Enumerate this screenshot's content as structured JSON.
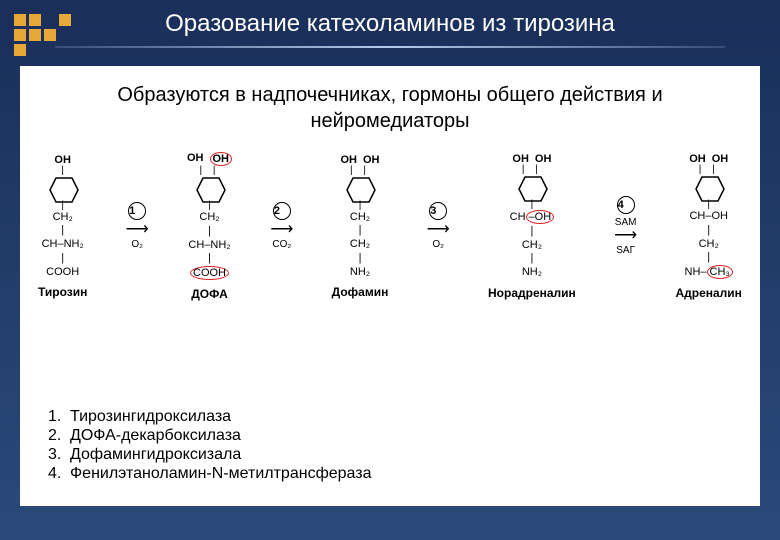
{
  "title": "Оразование катехоламинов из тирозина",
  "subtitle_l1": "Образуются в надпочечниках, гормоны общего действия и",
  "subtitle_l2": "нейромедиаторы",
  "molecules": [
    {
      "name": "Тирозин",
      "top_oh": [
        "OH"
      ],
      "has_oh_circle": false,
      "chain": [
        "CH₂",
        "|",
        "CH–NH₂",
        "|",
        "COOH"
      ],
      "circle_idx": []
    },
    {
      "name": "ДОФА",
      "top_oh": [
        "OH",
        "OH"
      ],
      "has_oh_circle": true,
      "chain": [
        "CH₂",
        "|",
        "CH–NH₂",
        "|",
        "COOH"
      ],
      "circle_idx": [
        4
      ]
    },
    {
      "name": "Дофамин",
      "top_oh": [
        "OH",
        "OH"
      ],
      "has_oh_circle": false,
      "chain": [
        "CH₂",
        "|",
        "CH₂",
        "|",
        "NH₂"
      ],
      "circle_idx": []
    },
    {
      "name": "Норадреналин",
      "top_oh": [
        "OH",
        "OH"
      ],
      "has_oh_circle": false,
      "chain": [
        "CH–OH",
        "|",
        "CH₂",
        "|",
        "NH₂"
      ],
      "circle_idx": [
        0
      ]
    },
    {
      "name": "Адреналин",
      "top_oh": [
        "OH",
        "OH"
      ],
      "has_oh_circle": false,
      "chain": [
        "CH–OH",
        "|",
        "CH₂",
        "|",
        "NH–CH₃"
      ],
      "circle_idx": [
        4
      ]
    }
  ],
  "arrows": [
    {
      "num": "1",
      "top": "",
      "bottom": "O₂"
    },
    {
      "num": "2",
      "top": "",
      "bottom": "CO₂"
    },
    {
      "num": "3",
      "top": "",
      "bottom": "O₂"
    },
    {
      "num": "4",
      "top": "SAM",
      "bottom": "SAГ"
    }
  ],
  "enzymes": [
    {
      "n": "1.",
      "name": "Тирозингидроксилаза"
    },
    {
      "n": "2.",
      "name": "ДОФА-декарбоксилаза"
    },
    {
      "n": "3.",
      "name": "Дофамингидроксизала"
    },
    {
      "n": "4.",
      "name": "Фенилэтаноламин-N-метилтрансфераза"
    }
  ],
  "colors": {
    "bg_top": "#1a2f5a",
    "accent": "#e6a838",
    "highlight": "#d22"
  }
}
